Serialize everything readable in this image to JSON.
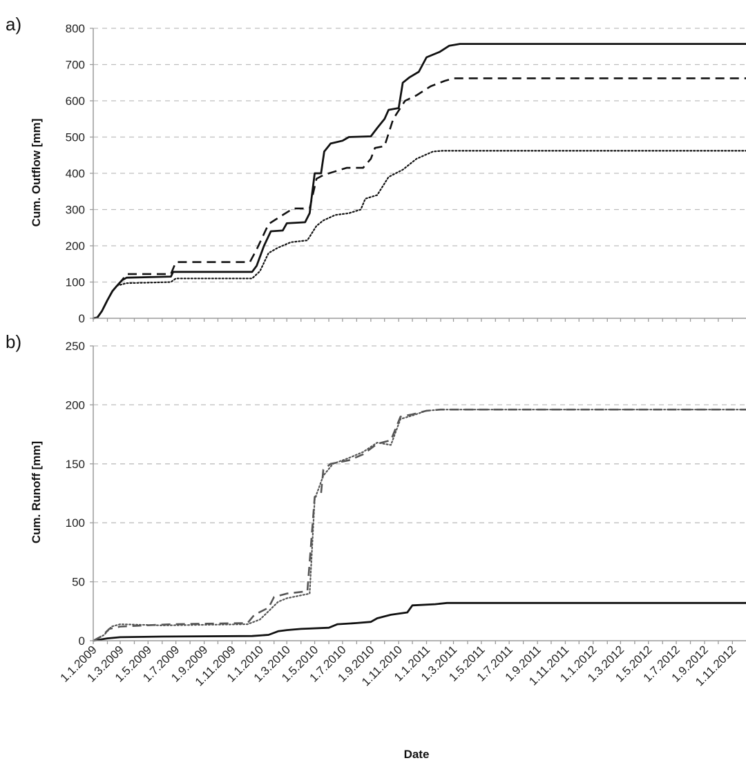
{
  "chart_data": [
    {
      "type": "line",
      "panel_label": "a)",
      "title": "",
      "xlabel": "",
      "ylabel": "Cum. Outflow [mm]",
      "ylim": [
        0,
        800
      ],
      "yticks": [
        0,
        100,
        200,
        300,
        400,
        500,
        600,
        700,
        800
      ],
      "xlim": [
        "2009-01-01",
        "2012-12-31"
      ],
      "grid": true,
      "series": [
        {
          "style": "solid",
          "color": "#111111",
          "points": [
            [
              "2009-01-01",
              0
            ],
            [
              "2009-01-10",
              2
            ],
            [
              "2009-01-20",
              20
            ],
            [
              "2009-02-01",
              50
            ],
            [
              "2009-02-12",
              75
            ],
            [
              "2009-02-22",
              90
            ],
            [
              "2009-03-05",
              105
            ],
            [
              "2009-03-15",
              112
            ],
            [
              "2009-06-20",
              115
            ],
            [
              "2009-06-25",
              128
            ],
            [
              "2009-12-15",
              128
            ],
            [
              "2009-12-25",
              145
            ],
            [
              "2010-01-10",
              200
            ],
            [
              "2010-01-25",
              240
            ],
            [
              "2010-02-20",
              242
            ],
            [
              "2010-03-01",
              262
            ],
            [
              "2010-04-10",
              265
            ],
            [
              "2010-04-20",
              290
            ],
            [
              "2010-05-01",
              400
            ],
            [
              "2010-05-15",
              400
            ],
            [
              "2010-05-22",
              460
            ],
            [
              "2010-06-05",
              482
            ],
            [
              "2010-07-01",
              490
            ],
            [
              "2010-07-15",
              500
            ],
            [
              "2010-09-01",
              502
            ],
            [
              "2010-09-15",
              525
            ],
            [
              "2010-10-01",
              550
            ],
            [
              "2010-10-10",
              575
            ],
            [
              "2010-11-01",
              580
            ],
            [
              "2010-11-10",
              650
            ],
            [
              "2010-11-25",
              665
            ],
            [
              "2010-12-15",
              680
            ],
            [
              "2011-01-01",
              720
            ],
            [
              "2011-01-30",
              735
            ],
            [
              "2011-02-20",
              752
            ],
            [
              "2011-03-15",
              757
            ],
            [
              "2012-12-31",
              757
            ]
          ]
        },
        {
          "style": "dashed",
          "color": "#111111",
          "points": [
            [
              "2009-01-01",
              0
            ],
            [
              "2009-01-10",
              2
            ],
            [
              "2009-01-20",
              20
            ],
            [
              "2009-02-01",
              50
            ],
            [
              "2009-02-12",
              75
            ],
            [
              "2009-02-22",
              90
            ],
            [
              "2009-03-05",
              105
            ],
            [
              "2009-03-15",
              122
            ],
            [
              "2009-06-20",
              122
            ],
            [
              "2009-07-01",
              155
            ],
            [
              "2009-12-10",
              155
            ],
            [
              "2009-12-25",
              190
            ],
            [
              "2010-01-20",
              260
            ],
            [
              "2010-02-20",
              285
            ],
            [
              "2010-03-15",
              303
            ],
            [
              "2010-04-20",
              303
            ],
            [
              "2010-05-05",
              385
            ],
            [
              "2010-05-20",
              395
            ],
            [
              "2010-07-10",
              415
            ],
            [
              "2010-08-15",
              415
            ],
            [
              "2010-09-01",
              440
            ],
            [
              "2010-09-10",
              470
            ],
            [
              "2010-10-01",
              475
            ],
            [
              "2010-10-20",
              550
            ],
            [
              "2010-11-15",
              600
            ],
            [
              "2010-12-10",
              615
            ],
            [
              "2011-01-10",
              640
            ],
            [
              "2011-02-10",
              655
            ],
            [
              "2011-03-01",
              662
            ],
            [
              "2012-12-31",
              662
            ]
          ]
        },
        {
          "style": "dotted",
          "color": "#111111",
          "points": [
            [
              "2009-01-01",
              0
            ],
            [
              "2009-01-10",
              2
            ],
            [
              "2009-01-20",
              20
            ],
            [
              "2009-02-01",
              50
            ],
            [
              "2009-02-12",
              75
            ],
            [
              "2009-02-22",
              90
            ],
            [
              "2009-03-15",
              97
            ],
            [
              "2009-06-20",
              100
            ],
            [
              "2009-07-01",
              110
            ],
            [
              "2009-12-15",
              110
            ],
            [
              "2010-01-01",
              130
            ],
            [
              "2010-01-20",
              180
            ],
            [
              "2010-02-10",
              195
            ],
            [
              "2010-03-10",
              210
            ],
            [
              "2010-04-15",
              215
            ],
            [
              "2010-05-05",
              255
            ],
            [
              "2010-05-20",
              270
            ],
            [
              "2010-06-15",
              285
            ],
            [
              "2010-07-15",
              290
            ],
            [
              "2010-08-10",
              300
            ],
            [
              "2010-08-20",
              330
            ],
            [
              "2010-09-15",
              340
            ],
            [
              "2010-10-10",
              390
            ],
            [
              "2010-11-10",
              410
            ],
            [
              "2010-12-10",
              440
            ],
            [
              "2011-01-15",
              460
            ],
            [
              "2011-02-05",
              462
            ],
            [
              "2012-12-31",
              462
            ]
          ]
        }
      ]
    },
    {
      "type": "line",
      "panel_label": "b)",
      "title": "",
      "xlabel": "Date",
      "ylabel": "Cum. Runoff [mm]",
      "ylim": [
        0,
        250
      ],
      "yticks": [
        0,
        50,
        100,
        150,
        200,
        250
      ],
      "xlim": [
        "2009-01-01",
        "2012-12-31"
      ],
      "grid": true,
      "xtick_labels": [
        "1.1.2009",
        "1.3.2009",
        "1.5.2009",
        "1.7.2009",
        "1.9.2009",
        "1.11.2009",
        "1.1.2010",
        "1.3.2010",
        "1.5.2010",
        "1.7.2010",
        "1.9.2010",
        "1.11.2010",
        "1.1.2011",
        "1.3.2011",
        "1.5.2011",
        "1.7.2011",
        "1.9.2011",
        "1.11.2011",
        "1.1.2012",
        "1.3.2012",
        "1.5.2012",
        "1.7.2012",
        "1.9.2012",
        "1.11.2012"
      ],
      "series": [
        {
          "style": "solid",
          "color": "#111111",
          "points": [
            [
              "2009-01-01",
              0
            ],
            [
              "2009-02-01",
              2
            ],
            [
              "2009-03-01",
              3
            ],
            [
              "2009-06-01",
              3.5
            ],
            [
              "2009-12-15",
              4
            ],
            [
              "2010-01-20",
              5
            ],
            [
              "2010-02-10",
              8
            ],
            [
              "2010-03-01",
              9
            ],
            [
              "2010-04-01",
              10
            ],
            [
              "2010-06-01",
              11
            ],
            [
              "2010-06-20",
              14
            ],
            [
              "2010-08-01",
              15
            ],
            [
              "2010-09-01",
              16
            ],
            [
              "2010-09-15",
              19
            ],
            [
              "2010-10-15",
              22
            ],
            [
              "2010-11-20",
              24
            ],
            [
              "2010-12-01",
              30
            ],
            [
              "2011-01-20",
              31
            ],
            [
              "2011-02-15",
              32
            ],
            [
              "2012-12-31",
              32
            ]
          ]
        },
        {
          "style": "dashed",
          "color": "#555555",
          "points": [
            [
              "2009-01-01",
              0
            ],
            [
              "2009-01-20",
              4
            ],
            [
              "2009-02-05",
              10
            ],
            [
              "2009-03-01",
              12
            ],
            [
              "2009-06-20",
              14
            ],
            [
              "2009-12-05",
              15
            ],
            [
              "2009-12-20",
              22
            ],
            [
              "2010-01-20",
              28
            ],
            [
              "2010-02-01",
              37
            ],
            [
              "2010-03-01",
              40
            ],
            [
              "2010-04-15",
              42
            ],
            [
              "2010-05-01",
              122
            ],
            [
              "2010-05-15",
              125
            ],
            [
              "2010-05-20",
              145
            ],
            [
              "2010-06-05",
              150
            ],
            [
              "2010-07-15",
              153
            ],
            [
              "2010-08-15",
              158
            ],
            [
              "2010-09-01",
              163
            ],
            [
              "2010-09-15",
              167
            ],
            [
              "2010-10-15",
              170
            ],
            [
              "2010-11-05",
              190
            ],
            [
              "2010-12-01",
              192
            ],
            [
              "2011-01-01",
              195
            ],
            [
              "2011-02-01",
              196
            ],
            [
              "2012-12-31",
              196
            ]
          ]
        },
        {
          "style": "dotted",
          "color": "#555555",
          "points": [
            [
              "2009-01-01",
              0
            ],
            [
              "2009-01-25",
              5
            ],
            [
              "2009-02-10",
              12
            ],
            [
              "2009-03-01",
              14
            ],
            [
              "2009-06-01",
              13
            ],
            [
              "2009-12-05",
              14
            ],
            [
              "2010-01-01",
              18
            ],
            [
              "2010-01-20",
              25
            ],
            [
              "2010-02-10",
              33
            ],
            [
              "2010-03-01",
              36
            ],
            [
              "2010-04-20",
              40
            ],
            [
              "2010-05-01",
              120
            ],
            [
              "2010-05-20",
              140
            ],
            [
              "2010-06-10",
              150
            ],
            [
              "2010-07-15",
              155
            ],
            [
              "2010-08-15",
              160
            ],
            [
              "2010-09-15",
              168
            ],
            [
              "2010-10-15",
              166
            ],
            [
              "2010-11-05",
              188
            ],
            [
              "2010-12-01",
              191
            ],
            [
              "2011-01-01",
              195
            ],
            [
              "2011-02-01",
              196
            ],
            [
              "2012-12-31",
              196
            ]
          ]
        }
      ]
    }
  ]
}
